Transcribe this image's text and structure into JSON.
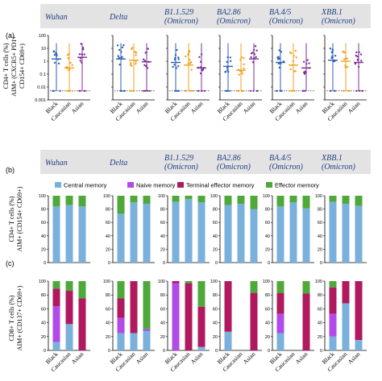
{
  "chart_data": [
    {
      "panel": "(a)",
      "type": "scatter",
      "ylabel": [
        "CD4+ T cells (%)",
        "AIM+ (CXCR5+ PD1+",
        "CD154+ CD69+)"
      ],
      "yscale": "log",
      "ylim": [
        0.001,
        100
      ],
      "yticks": [
        "100",
        "10",
        "1",
        "0.1",
        "0.01",
        "0.001"
      ],
      "variants": [
        "Wuhan",
        "Delta",
        "B1.1.529 (Omicron)",
        "BA2.86 (Omicron)",
        "BA.4/5 (Omicron)",
        "XBB.1 (Omicron)"
      ],
      "categories": [
        "Black",
        "Caucasian",
        "Asian"
      ],
      "colors": {
        "Black": "#2f5fb3",
        "Caucasian": "#f0a21e",
        "Asian": "#7b2f94"
      },
      "medians": [
        [
          1.5,
          0.3,
          2.0
        ],
        [
          1.5,
          1.2,
          0.9
        ],
        [
          0.8,
          0.5,
          0.3
        ],
        [
          0.4,
          0.2,
          1.5
        ],
        [
          0.8,
          0.5,
          0.3
        ],
        [
          1.2,
          1.0,
          0.8
        ]
      ]
    },
    {
      "panel": "(b)",
      "type": "bar",
      "stacked": true,
      "ylabel": [
        "CD4+ T cells (%)",
        "AIM+ (CD154+ CD69+)"
      ],
      "ylim": [
        0,
        100
      ],
      "yticks": [
        "100",
        "80",
        "60",
        "40",
        "20",
        "0"
      ],
      "legend": [
        "Central memory",
        "Naive memory",
        "Terminal effector memory",
        "Effector memory"
      ],
      "colors": [
        "#7ab0dc",
        "#b24ae8",
        "#b0195e",
        "#4ea83a"
      ],
      "categories": [
        "Black",
        "Caucasian",
        "Asian"
      ],
      "values": [
        [
          [
            84,
            0,
            0,
            16
          ],
          [
            86,
            0,
            0,
            14
          ],
          [
            84,
            0,
            0,
            16
          ]
        ],
        [
          [
            73,
            0,
            0,
            27
          ],
          [
            90,
            0,
            0,
            10
          ],
          [
            88,
            0,
            0,
            12
          ]
        ],
        [
          [
            91,
            0,
            0,
            9
          ],
          [
            95,
            0,
            0,
            5
          ],
          [
            90,
            0,
            0,
            10
          ]
        ],
        [
          [
            86,
            0,
            0,
            14
          ],
          [
            88,
            0,
            0,
            12
          ],
          [
            80,
            0,
            0,
            20
          ]
        ],
        [
          [
            84,
            0,
            0,
            16
          ],
          [
            90,
            0,
            0,
            10
          ],
          [
            81,
            0,
            0,
            19
          ]
        ],
        [
          [
            91,
            0,
            0,
            9
          ],
          [
            88,
            0,
            0,
            12
          ],
          [
            85,
            0,
            0,
            15
          ]
        ]
      ]
    },
    {
      "panel": "(c)",
      "type": "bar",
      "stacked": true,
      "ylabel": [
        "CD8+ T cells (%)",
        "AIM+ (CD137+ CD69+)"
      ],
      "ylim": [
        0,
        100
      ],
      "yticks": [
        "100",
        "80",
        "60",
        "40",
        "20",
        "0"
      ],
      "categories": [
        "Black",
        "Caucasian",
        "Asian"
      ],
      "values": [
        [
          [
            12,
            52,
            25,
            11
          ],
          [
            38,
            0,
            48,
            14
          ],
          [
            0,
            0,
            75,
            25
          ]
        ],
        [
          [
            25,
            22,
            28,
            25
          ],
          [
            25,
            0,
            75,
            0
          ],
          [
            28,
            3,
            0,
            69
          ]
        ],
        [
          [
            0,
            97,
            3,
            0
          ],
          [
            0,
            0,
            97,
            3
          ],
          [
            5,
            0,
            58,
            37
          ]
        ],
        [
          [
            27,
            0,
            73,
            0
          ],
          [
            0,
            0,
            0,
            0
          ],
          [
            0,
            0,
            83,
            17
          ]
        ],
        [
          [
            25,
            28,
            30,
            17
          ],
          [
            0,
            0,
            0,
            0
          ],
          [
            0,
            0,
            82,
            18
          ]
        ],
        [
          [
            20,
            33,
            38,
            9
          ],
          [
            68,
            0,
            32,
            0
          ],
          [
            15,
            0,
            85,
            0
          ]
        ]
      ]
    }
  ],
  "headers_a": [
    "Wuhan",
    "Delta",
    "B1.1.529|(Omicron)",
    "BA2.86|(Omicron)",
    "BA.4/5|(Omicron)",
    "XBB.1|(Omicron)"
  ],
  "headers_b": [
    "Wuhan",
    "Delta",
    "B1.1.529|(Omicron)",
    "BA2.86|(Omicron)",
    "BA.4/5|(Omicron)",
    "XBB.1|(Omicron)"
  ],
  "panel_labels": [
    "(a)",
    "(b)",
    "(c)"
  ]
}
